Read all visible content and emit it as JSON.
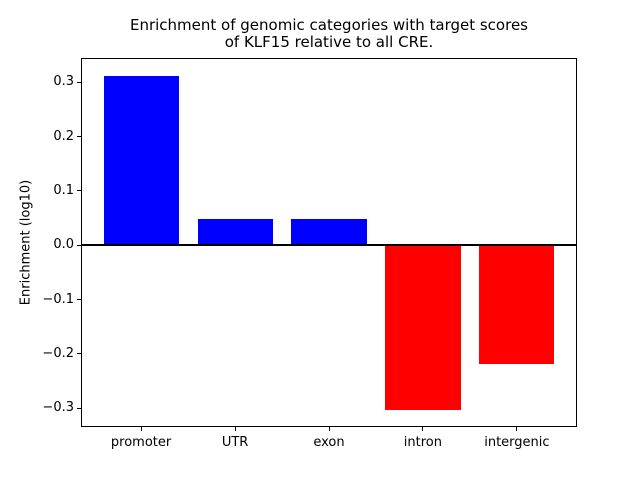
{
  "chart_data": {
    "type": "bar",
    "title": "Enrichment of genomic categories with target scores\nof KLF15 relative to all CRE.",
    "xlabel": "",
    "ylabel": "Enrichment (log10)",
    "categories": [
      "promoter",
      "UTR",
      "exon",
      "intron",
      "intergenic"
    ],
    "values": [
      0.312,
      0.048,
      0.048,
      -0.303,
      -0.219
    ],
    "bar_colors": [
      "#0000ff",
      "#0000ff",
      "#0000ff",
      "#ff0000",
      "#ff0000"
    ],
    "positive_color": "#0000ff",
    "negative_color": "#ff0000",
    "bar_width": 0.8,
    "xlim": [
      -0.64,
      4.64
    ],
    "ylim": [
      -0.335,
      0.345
    ],
    "yticks": [
      {
        "value": 0.3,
        "label": "0.3"
      },
      {
        "value": 0.2,
        "label": "0.2"
      },
      {
        "value": 0.1,
        "label": "0.1"
      },
      {
        "value": 0.0,
        "label": "0.0"
      },
      {
        "value": -0.1,
        "label": "−0.1"
      },
      {
        "value": -0.2,
        "label": "−0.2"
      },
      {
        "value": -0.3,
        "label": "−0.3"
      }
    ],
    "grid": false,
    "legend": null,
    "zero_line": true,
    "axis_color": "#000000",
    "background_color": "#ffffff"
  }
}
